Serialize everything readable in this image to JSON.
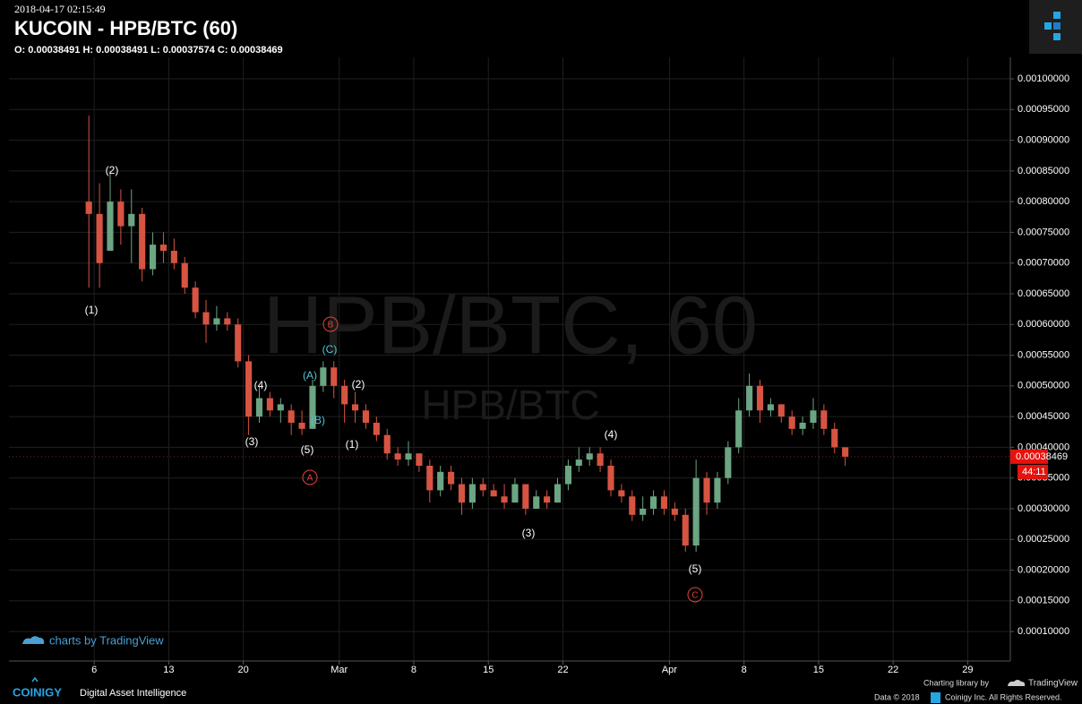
{
  "chart_data": {
    "type": "candlestick",
    "timestamp": "2018-04-17 02:15:49",
    "title": "KUCOIN - HPB/BTC (60)",
    "ohlc_line": "O: 0.00038491 H: 0.00038491 L: 0.00037574 C: 0.00038469",
    "watermark": "HPB/BTC, 60",
    "watermark_sub": "HPB/BTC",
    "countdown": "44:11",
    "up_color": "#6ba583",
    "down_color": "#d75442",
    "grid": true,
    "x": [
      "2018-02-05",
      "2018-02-06",
      "2018-02-07",
      "2018-02-08",
      "2018-02-09",
      "2018-02-10",
      "2018-02-11",
      "2018-02-12",
      "2018-02-13",
      "2018-02-14",
      "2018-02-15",
      "2018-02-16",
      "2018-02-17",
      "2018-02-18",
      "2018-02-19",
      "2018-02-20",
      "2018-02-21",
      "2018-02-22",
      "2018-02-23",
      "2018-02-24",
      "2018-02-25",
      "2018-02-26",
      "2018-02-27",
      "2018-02-28",
      "2018-03-01",
      "2018-03-02",
      "2018-03-03",
      "2018-03-04",
      "2018-03-05",
      "2018-03-06",
      "2018-03-07",
      "2018-03-08",
      "2018-03-09",
      "2018-03-10",
      "2018-03-11",
      "2018-03-12",
      "2018-03-13",
      "2018-03-14",
      "2018-03-15",
      "2018-03-16",
      "2018-03-17",
      "2018-03-18",
      "2018-03-19",
      "2018-03-20",
      "2018-03-21",
      "2018-03-22",
      "2018-03-23",
      "2018-03-24",
      "2018-03-25",
      "2018-03-26",
      "2018-03-27",
      "2018-03-28",
      "2018-03-29",
      "2018-03-30",
      "2018-03-31",
      "2018-04-01",
      "2018-04-02",
      "2018-04-03",
      "2018-04-04",
      "2018-04-05",
      "2018-04-06",
      "2018-04-07",
      "2018-04-08",
      "2018-04-09",
      "2018-04-10",
      "2018-04-11",
      "2018-04-12",
      "2018-04-13",
      "2018-04-14",
      "2018-04-15",
      "2018-04-16",
      "2018-04-17"
    ],
    "open": [
      0.0008,
      0.00078,
      0.00072,
      0.0008,
      0.00076,
      0.00078,
      0.00069,
      0.00073,
      0.00072,
      0.0007,
      0.00066,
      0.00062,
      0.0006,
      0.00061,
      0.0006,
      0.00054,
      0.00045,
      0.00048,
      0.00046,
      0.00046,
      0.00044,
      0.00043,
      0.0005,
      0.00053,
      0.0005,
      0.00047,
      0.00046,
      0.00044,
      0.00042,
      0.00039,
      0.00038,
      0.00039,
      0.00037,
      0.00033,
      0.00036,
      0.00034,
      0.00031,
      0.00034,
      0.00033,
      0.00032,
      0.00031,
      0.00034,
      0.0003,
      0.00032,
      0.00031,
      0.00034,
      0.00037,
      0.00038,
      0.00039,
      0.00037,
      0.00033,
      0.00032,
      0.00029,
      0.0003,
      0.00032,
      0.0003,
      0.00029,
      0.00024,
      0.00035,
      0.00031,
      0.00035,
      0.0004,
      0.00046,
      0.0005,
      0.00046,
      0.00047,
      0.00045,
      0.00043,
      0.00044,
      0.00046,
      0.00043,
      0.0004
    ],
    "high": [
      0.00094,
      0.00083,
      0.00085,
      0.00082,
      0.00082,
      0.00079,
      0.00075,
      0.00075,
      0.00074,
      0.00071,
      0.00067,
      0.00064,
      0.00063,
      0.00062,
      0.00061,
      0.00055,
      0.0005,
      0.00049,
      0.00048,
      0.00047,
      0.00046,
      0.00051,
      0.00054,
      0.00054,
      0.00051,
      0.00049,
      0.00047,
      0.00045,
      0.00043,
      0.0004,
      0.00041,
      0.00039,
      0.00038,
      0.00037,
      0.00037,
      0.00035,
      0.00035,
      0.00035,
      0.00034,
      0.00034,
      0.00035,
      0.00034,
      0.00033,
      0.00033,
      0.00035,
      0.00038,
      0.0004,
      0.0004,
      0.0004,
      0.00038,
      0.00034,
      0.00033,
      0.00032,
      0.00033,
      0.00033,
      0.00031,
      0.0003,
      0.00038,
      0.00036,
      0.00036,
      0.00041,
      0.00048,
      0.00052,
      0.00051,
      0.00048,
      0.00047,
      0.00046,
      0.00045,
      0.00048,
      0.00047,
      0.00044,
      0.0004
    ],
    "low": [
      0.00066,
      0.00066,
      0.00072,
      0.00073,
      0.0007,
      0.00067,
      0.00068,
      0.0007,
      0.00069,
      0.00065,
      0.00061,
      0.00057,
      0.00059,
      0.00059,
      0.00053,
      0.00042,
      0.00044,
      0.00045,
      0.00044,
      0.00042,
      0.00042,
      0.00043,
      0.00049,
      0.00048,
      0.00044,
      0.00044,
      0.00043,
      0.00041,
      0.00038,
      0.00037,
      0.00037,
      0.00036,
      0.00031,
      0.00032,
      0.00033,
      0.00029,
      0.0003,
      0.00032,
      0.00032,
      0.0003,
      0.00031,
      0.00029,
      0.0003,
      0.0003,
      0.00031,
      0.00033,
      0.00036,
      0.00037,
      0.00036,
      0.00032,
      0.00031,
      0.00028,
      0.00028,
      0.00029,
      0.00029,
      0.00028,
      0.00023,
      0.00023,
      0.00029,
      0.0003,
      0.00034,
      0.00039,
      0.00045,
      0.00044,
      0.00045,
      0.00044,
      0.00042,
      0.00042,
      0.00043,
      0.00042,
      0.00039,
      0.00037
    ],
    "close": [
      0.00078,
      0.0007,
      0.0008,
      0.00076,
      0.00078,
      0.00069,
      0.00073,
      0.00072,
      0.0007,
      0.00066,
      0.00062,
      0.0006,
      0.00061,
      0.0006,
      0.00054,
      0.00045,
      0.00048,
      0.00046,
      0.00047,
      0.00044,
      0.00043,
      0.0005,
      0.00053,
      0.0005,
      0.00047,
      0.00046,
      0.00044,
      0.00042,
      0.00039,
      0.00038,
      0.00039,
      0.00037,
      0.00033,
      0.00036,
      0.00034,
      0.00031,
      0.00034,
      0.00033,
      0.00032,
      0.00031,
      0.00034,
      0.0003,
      0.00032,
      0.00031,
      0.00034,
      0.00037,
      0.00038,
      0.00039,
      0.00037,
      0.00033,
      0.00032,
      0.00029,
      0.0003,
      0.00032,
      0.0003,
      0.00029,
      0.00024,
      0.00035,
      0.00031,
      0.00035,
      0.0004,
      0.00046,
      0.0005,
      0.00046,
      0.00047,
      0.00045,
      0.00043,
      0.00044,
      0.00046,
      0.00043,
      0.0004,
      0.00038469
    ],
    "xlim": [
      "2018-01-29",
      "2018-05-03"
    ],
    "xticks": [
      {
        "value": "2018-02-06",
        "label": "6"
      },
      {
        "value": "2018-02-13",
        "label": "13"
      },
      {
        "value": "2018-02-20",
        "label": "20"
      },
      {
        "value": "2018-03-01",
        "label": "Mar"
      },
      {
        "value": "2018-03-08",
        "label": "8"
      },
      {
        "value": "2018-03-15",
        "label": "15"
      },
      {
        "value": "2018-03-22",
        "label": "22"
      },
      {
        "value": "2018-04-01",
        "label": "Apr"
      },
      {
        "value": "2018-04-08",
        "label": "8"
      },
      {
        "value": "2018-04-15",
        "label": "15"
      },
      {
        "value": "2018-04-22",
        "label": "22"
      },
      {
        "value": "2018-04-29",
        "label": "29"
      }
    ],
    "ylim": [
      5.2e-05,
      0.001035
    ],
    "yticks": [
      {
        "value": 0.0001,
        "label": "0.00010000"
      },
      {
        "value": 0.00015,
        "label": "0.00015000"
      },
      {
        "value": 0.0002,
        "label": "0.00020000"
      },
      {
        "value": 0.00025,
        "label": "0.00025000"
      },
      {
        "value": 0.0003,
        "label": "0.00030000"
      },
      {
        "value": 0.00035,
        "label": "0.00035000"
      },
      {
        "value": 0.0004,
        "label": "0.00040000"
      },
      {
        "value": 0.00045,
        "label": "0.00045000"
      },
      {
        "value": 0.0005,
        "label": "0.00050000"
      },
      {
        "value": 0.00055,
        "label": "0.00055000"
      },
      {
        "value": 0.0006,
        "label": "0.00060000"
      },
      {
        "value": 0.00065,
        "label": "0.00065000"
      },
      {
        "value": 0.0007,
        "label": "0.00070000"
      },
      {
        "value": 0.00075,
        "label": "0.00075000"
      },
      {
        "value": 0.0008,
        "label": "0.00080000"
      },
      {
        "value": 0.00085,
        "label": "0.00085000"
      },
      {
        "value": 0.0009,
        "label": "0.00090000"
      },
      {
        "value": 0.00095,
        "label": "0.00095000"
      },
      {
        "value": 0.001,
        "label": "0.00100000"
      }
    ],
    "annotations": [
      {
        "text": "(1)",
        "color": "#ffffff"
      },
      {
        "text": "(2)",
        "color": "#ffffff"
      },
      {
        "text": "(4)",
        "color": "#ffffff"
      },
      {
        "text": "(3)",
        "color": "#ffffff"
      },
      {
        "text": "(5)",
        "color": "#ffffff"
      },
      {
        "text": "(A)",
        "color": "#4fc3d9"
      },
      {
        "text": "(B)",
        "color": "#4fc3d9"
      },
      {
        "text": "(C)",
        "color": "#4fc3d9"
      },
      {
        "text": "(2)",
        "color": "#ffffff"
      },
      {
        "text": "(1)",
        "color": "#ffffff"
      },
      {
        "text": "(4)",
        "color": "#ffffff"
      },
      {
        "text": "(3)",
        "color": "#ffffff"
      },
      {
        "text": "(5)",
        "color": "#ffffff"
      },
      {
        "text": "A",
        "color": "#e0453a",
        "circled": true
      },
      {
        "text": "B",
        "color": "#e0453a",
        "circled": true
      },
      {
        "text": "C",
        "color": "#e0453a",
        "circled": true
      }
    ]
  },
  "footer": {
    "tv_credit": "charts by TradingView",
    "brand": "COINIGY",
    "tagline": "Digital Asset Intelligence",
    "library_credit": "Charting library by",
    "library_name": "TradingView",
    "data_credit": "Data © 2018",
    "rights": "Coinigy Inc. All Rights Reserved."
  }
}
